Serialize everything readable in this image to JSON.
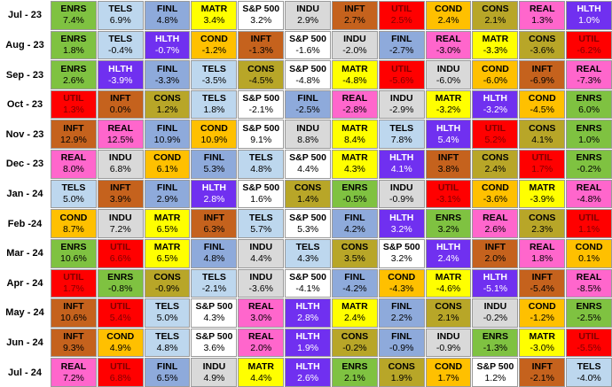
{
  "chart_data": {
    "type": "table",
    "colors": {
      "ENRS": {
        "bg": "#7fc241",
        "fg": "#000000"
      },
      "TELS": {
        "bg": "#bdd7ee",
        "fg": "#000000"
      },
      "FINL": {
        "bg": "#8eaadb",
        "fg": "#000000"
      },
      "MATR": {
        "bg": "#ffff00",
        "fg": "#000000"
      },
      "S&P 500": {
        "bg": "#ffffff",
        "fg": "#000000"
      },
      "INDU": {
        "bg": "#d9d9d9",
        "fg": "#000000"
      },
      "INFT": {
        "bg": "#c5621d",
        "fg": "#000000"
      },
      "UTIL": {
        "bg": "#ff0000",
        "fg": "#7f0000"
      },
      "COND": {
        "bg": "#ffc000",
        "fg": "#000000"
      },
      "CONS": {
        "bg": "#b8a628",
        "fg": "#000000"
      },
      "REAL": {
        "bg": "#ff66cc",
        "fg": "#000000"
      },
      "HLTH": {
        "bg": "#7030f0",
        "fg": "#ffffff"
      }
    },
    "rows": [
      {
        "label": "Jul - 23",
        "cells": [
          [
            "ENRS",
            "7.4%"
          ],
          [
            "TELS",
            "6.9%"
          ],
          [
            "FINL",
            "4.8%"
          ],
          [
            "MATR",
            "3.4%"
          ],
          [
            "S&P 500",
            "3.2%"
          ],
          [
            "INDU",
            "2.9%"
          ],
          [
            "INFT",
            "2.7%"
          ],
          [
            "UTIL",
            "2.5%"
          ],
          [
            "COND",
            "2.4%"
          ],
          [
            "CONS",
            "2.1%"
          ],
          [
            "REAL",
            "1.3%"
          ],
          [
            "HLTH",
            "1.0%"
          ]
        ]
      },
      {
        "label": "Aug - 23",
        "cells": [
          [
            "ENRS",
            "1.8%"
          ],
          [
            "TELS",
            "-0.4%"
          ],
          [
            "HLTH",
            "-0.7%"
          ],
          [
            "COND",
            "-1.2%"
          ],
          [
            "INFT",
            "-1.3%"
          ],
          [
            "S&P 500",
            "-1.6%"
          ],
          [
            "INDU",
            "-2.0%"
          ],
          [
            "FINL",
            "-2.7%"
          ],
          [
            "REAL",
            "-3.0%"
          ],
          [
            "MATR",
            "-3.3%"
          ],
          [
            "CONS",
            "-3.6%"
          ],
          [
            "UTIL",
            "-6.2%"
          ]
        ]
      },
      {
        "label": "Sep - 23",
        "cells": [
          [
            "ENRS",
            "2.6%"
          ],
          [
            "HLTH",
            "-3.9%"
          ],
          [
            "FINL",
            "-3.3%"
          ],
          [
            "TELS",
            "-3.5%"
          ],
          [
            "CONS",
            "-4.5%"
          ],
          [
            "S&P 500",
            "-4.8%"
          ],
          [
            "MATR",
            "-4.8%"
          ],
          [
            "UTIL",
            "-5.6%"
          ],
          [
            "INDU",
            "-6.0%"
          ],
          [
            "COND",
            "-6.0%"
          ],
          [
            "INFT",
            "-6.9%"
          ],
          [
            "REAL",
            "-7.3%"
          ]
        ]
      },
      {
        "label": "Oct - 23",
        "cells": [
          [
            "UTIL",
            "1.3%"
          ],
          [
            "INFT",
            "0.0%"
          ],
          [
            "CONS",
            "1.2%"
          ],
          [
            "TELS",
            "1.8%"
          ],
          [
            "S&P 500",
            "-2.1%"
          ],
          [
            "FINL",
            "-2.5%"
          ],
          [
            "REAL",
            "-2.8%"
          ],
          [
            "INDU",
            "-2.9%"
          ],
          [
            "MATR",
            "-3.2%"
          ],
          [
            "HLTH",
            "-3.2%"
          ],
          [
            "COND",
            "-4.5%"
          ],
          [
            "ENRS",
            "6.0%"
          ]
        ]
      },
      {
        "label": "Nov - 23",
        "cells": [
          [
            "INFT",
            "12.9%"
          ],
          [
            "REAL",
            "12.5%"
          ],
          [
            "FINL",
            "10.9%"
          ],
          [
            "COND",
            "10.9%"
          ],
          [
            "S&P 500",
            "9.1%"
          ],
          [
            "INDU",
            "8.8%"
          ],
          [
            "MATR",
            "8.4%"
          ],
          [
            "TELS",
            "7.8%"
          ],
          [
            "HLTH",
            "5.4%"
          ],
          [
            "UTIL",
            "5.2%"
          ],
          [
            "CONS",
            "4.1%"
          ],
          [
            "ENRS",
            "1.0%"
          ]
        ]
      },
      {
        "label": "Dec - 23",
        "cells": [
          [
            "REAL",
            "8.0%"
          ],
          [
            "INDU",
            "6.8%"
          ],
          [
            "COND",
            "6.1%"
          ],
          [
            "FINL",
            "5.3%"
          ],
          [
            "TELS",
            "4.8%"
          ],
          [
            "S&P 500",
            "4.4%"
          ],
          [
            "MATR",
            "4.3%"
          ],
          [
            "HLTH",
            "4.1%"
          ],
          [
            "INFT",
            "3.8%"
          ],
          [
            "CONS",
            "2.4%"
          ],
          [
            "UTIL",
            "1.7%"
          ],
          [
            "ENRS",
            "-0.2%"
          ]
        ]
      },
      {
        "label": "Jan - 24",
        "cells": [
          [
            "TELS",
            "5.0%"
          ],
          [
            "INFT",
            "3.9%"
          ],
          [
            "FINL",
            "2.9%"
          ],
          [
            "HLTH",
            "2.8%"
          ],
          [
            "S&P 500",
            "1.6%"
          ],
          [
            "CONS",
            "1.4%"
          ],
          [
            "ENRS",
            "-0.5%"
          ],
          [
            "INDU",
            "-0.9%"
          ],
          [
            "UTIL",
            "-3.1%"
          ],
          [
            "COND",
            "-3.6%"
          ],
          [
            "MATR",
            "-3.9%"
          ],
          [
            "REAL",
            "-4.8%"
          ]
        ]
      },
      {
        "label": "Feb -24",
        "cells": [
          [
            "COND",
            "8.7%"
          ],
          [
            "INDU",
            "7.2%"
          ],
          [
            "MATR",
            "6.5%"
          ],
          [
            "INFT",
            "6.3%"
          ],
          [
            "TELS",
            "5.7%"
          ],
          [
            "S&P 500",
            "5.3%"
          ],
          [
            "FINL",
            "4.2%"
          ],
          [
            "HLTH",
            "3.2%"
          ],
          [
            "ENRS",
            "3.2%"
          ],
          [
            "REAL",
            "2.6%"
          ],
          [
            "CONS",
            "2.3%"
          ],
          [
            "UTIL",
            "1.1%"
          ]
        ]
      },
      {
        "label": "Mar - 24",
        "cells": [
          [
            "ENRS",
            "10.6%"
          ],
          [
            "UTIL",
            "6.6%"
          ],
          [
            "MATR",
            "6.5%"
          ],
          [
            "FINL",
            "4.8%"
          ],
          [
            "INDU",
            "4.4%"
          ],
          [
            "TELS",
            "4.3%"
          ],
          [
            "CONS",
            "3.5%"
          ],
          [
            "S&P 500",
            "3.2%"
          ],
          [
            "HLTH",
            "2.4%"
          ],
          [
            "INFT",
            "2.0%"
          ],
          [
            "REAL",
            "1.8%"
          ],
          [
            "COND",
            "0.1%"
          ]
        ]
      },
      {
        "label": "Apr - 24",
        "cells": [
          [
            "UTIL",
            "1.7%"
          ],
          [
            "ENRS",
            "-0.8%"
          ],
          [
            "CONS",
            "-0.9%"
          ],
          [
            "TELS",
            "-2.1%"
          ],
          [
            "INDU",
            "-3.6%"
          ],
          [
            "S&P 500",
            "-4.1%"
          ],
          [
            "FINL",
            "-4.2%"
          ],
          [
            "COND",
            "-4.3%"
          ],
          [
            "MATR",
            "-4.6%"
          ],
          [
            "HLTH",
            "-5.1%"
          ],
          [
            "INFT",
            "-5.4%"
          ],
          [
            "REAL",
            "-8.5%"
          ]
        ]
      },
      {
        "label": "May - 24",
        "cells": [
          [
            "INFT",
            "10.6%"
          ],
          [
            "UTIL",
            "5.4%"
          ],
          [
            "TELS",
            "5.0%"
          ],
          [
            "S&P 500",
            "4.3%"
          ],
          [
            "REAL",
            "3.0%"
          ],
          [
            "HLTH",
            "2.8%"
          ],
          [
            "MATR",
            "2.4%"
          ],
          [
            "FINL",
            "2.2%"
          ],
          [
            "CONS",
            "2.1%"
          ],
          [
            "INDU",
            "-0.2%"
          ],
          [
            "COND",
            "-1.2%"
          ],
          [
            "ENRS",
            "-2.5%"
          ]
        ]
      },
      {
        "label": "Jun - 24",
        "cells": [
          [
            "INFT",
            "9.3%"
          ],
          [
            "COND",
            "4.9%"
          ],
          [
            "TELS",
            "4.8%"
          ],
          [
            "S&P 500",
            "3.6%"
          ],
          [
            "REAL",
            "2.0%"
          ],
          [
            "HLTH",
            "1.9%"
          ],
          [
            "CONS",
            "-0.2%"
          ],
          [
            "FINL",
            "-0.9%"
          ],
          [
            "INDU",
            "-0.9%"
          ],
          [
            "ENRS",
            "-1.3%"
          ],
          [
            "MATR",
            "-3.0%"
          ],
          [
            "UTIL",
            "-5.5%"
          ]
        ]
      },
      {
        "label": "Jul - 24",
        "cells": [
          [
            "REAL",
            "7.2%"
          ],
          [
            "UTIL",
            "6.8%"
          ],
          [
            "FINL",
            "6.5%"
          ],
          [
            "INDU",
            "4.9%"
          ],
          [
            "MATR",
            "4.4%"
          ],
          [
            "HLTH",
            "2.6%"
          ],
          [
            "ENRS",
            "2.1%"
          ],
          [
            "CONS",
            "1.9%"
          ],
          [
            "COND",
            "1.7%"
          ],
          [
            "S&P 500",
            "1.2%"
          ],
          [
            "INFT",
            "-2.1%"
          ],
          [
            "TELS",
            "-4.0%"
          ]
        ]
      }
    ]
  }
}
